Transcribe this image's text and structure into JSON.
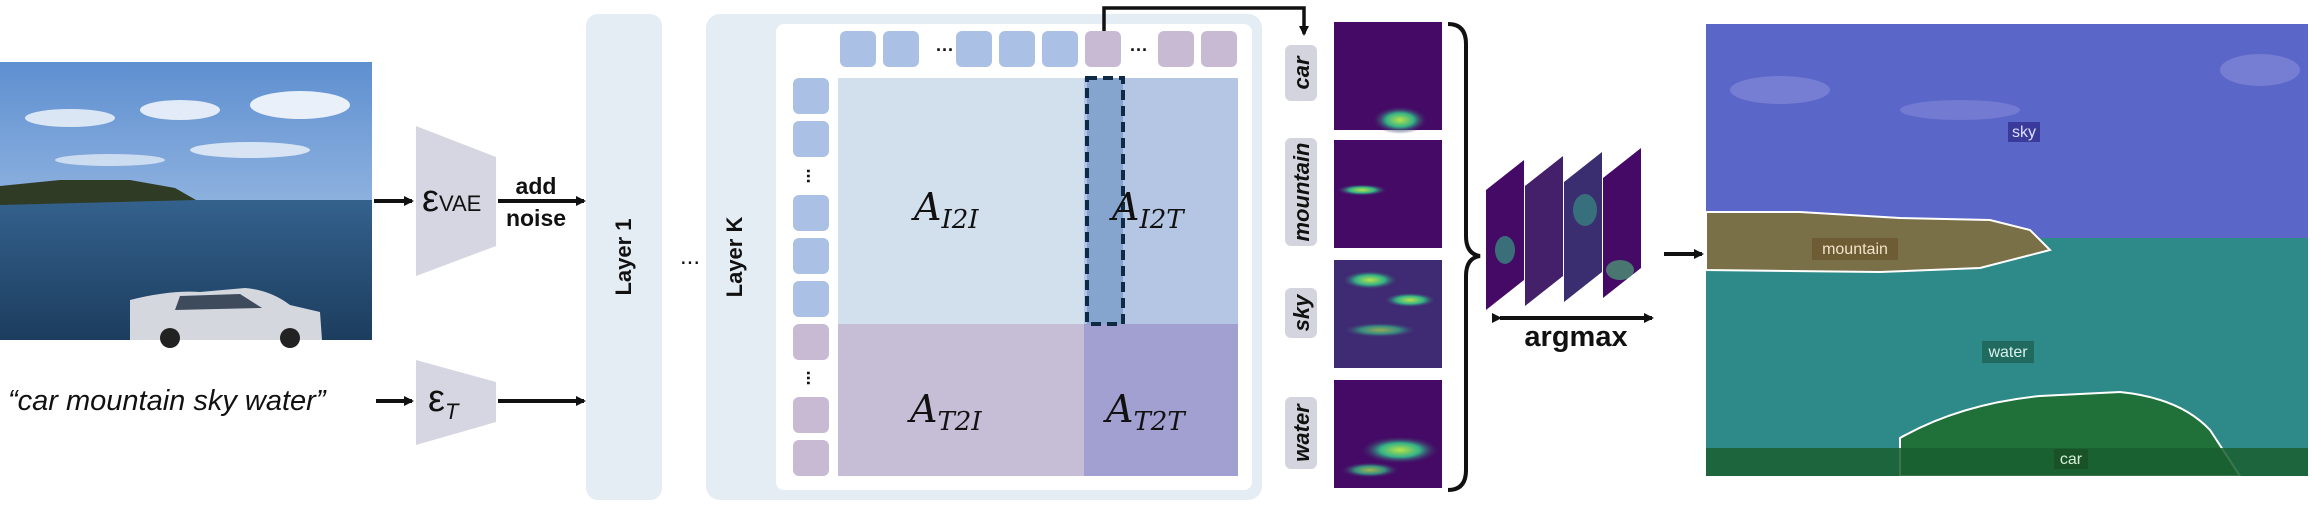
{
  "prompt_text": "“car mountain sky water”",
  "encoder_vae": {
    "main": "ε",
    "sub": "VAE"
  },
  "encoder_text": {
    "main": "ε",
    "sub": "T"
  },
  "add_noise": [
    "add",
    "noise"
  ],
  "layer_first": "Layer 1",
  "layer_last": "Layer K",
  "ellipsis": "...",
  "token_ellipsis": "···",
  "attention_blocks": {
    "i2i": {
      "main": "A",
      "sub": "I2I"
    },
    "i2t": {
      "main": "A",
      "sub": "I2T"
    },
    "t2i": {
      "main": "A",
      "sub": "T2I"
    },
    "t2t": {
      "main": "A",
      "sub": "T2T"
    }
  },
  "class_tokens": [
    "car",
    "mountain",
    "sky",
    "water"
  ],
  "argmax_label": "argmax",
  "segment_labels": [
    "sky",
    "mountain",
    "water",
    "car"
  ],
  "colors": {
    "layer_panel": "#e4ecf4",
    "image_token": "#aac0e4",
    "text_token": "#c8bad2",
    "i2i": "#d2e0ee",
    "i2t": "#b4c6e4",
    "t2i": "#c6bed6",
    "t2t": "#a2a0d0",
    "highlight_column": "#85a5cf",
    "encoder": "#d6d6e2",
    "heatmap_bg": "#440a66",
    "heatmap_hot": "#4ecf78"
  }
}
